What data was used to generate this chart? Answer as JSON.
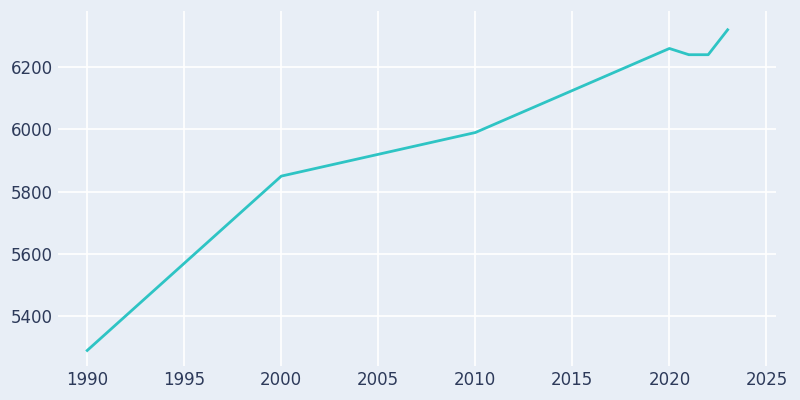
{
  "years": [
    1990,
    2000,
    2010,
    2020,
    2021,
    2022,
    2023
  ],
  "population": [
    5290,
    5850,
    5990,
    6260,
    6240,
    6240,
    6320
  ],
  "line_color": "#2EC4C4",
  "bg_color": "#E8EEF6",
  "plot_bg_color": "#E8EEF6",
  "xlim": [
    1988.5,
    2025.5
  ],
  "ylim": [
    5240,
    6380
  ],
  "xticks": [
    1990,
    1995,
    2000,
    2005,
    2010,
    2015,
    2020,
    2025
  ],
  "yticks": [
    5400,
    5600,
    5800,
    6000,
    6200
  ],
  "line_width": 2.0,
  "tick_label_color": "#2D3A5A",
  "tick_fontsize": 12,
  "grid_color": "#FFFFFF",
  "grid_linewidth": 1.2
}
